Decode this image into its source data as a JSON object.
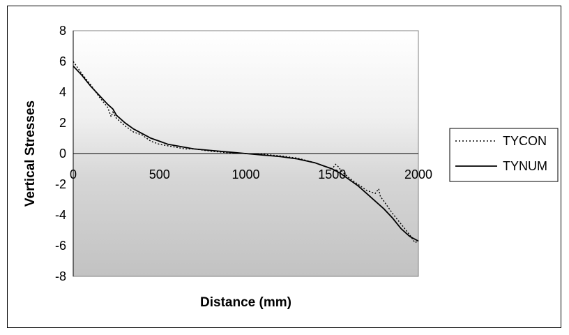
{
  "chart_data": {
    "type": "line",
    "title": "",
    "xlabel": "Distance (mm)",
    "ylabel": "Vertical Stresses",
    "xlim": [
      0,
      2000
    ],
    "ylim": [
      -8,
      8
    ],
    "xticks": [
      0,
      500,
      1000,
      1500,
      2000
    ],
    "yticks": [
      8,
      6,
      4,
      2,
      0,
      -2,
      -4,
      -6,
      -8
    ],
    "grid": false,
    "legend_position": "right",
    "series": [
      {
        "name": "TYCON",
        "style": "dotted",
        "x": [
          0,
          50,
          100,
          150,
          200,
          220,
          230,
          250,
          300,
          350,
          400,
          450,
          500,
          550,
          600,
          650,
          700,
          800,
          900,
          1000,
          1100,
          1200,
          1300,
          1400,
          1450,
          1500,
          1520,
          1540,
          1550,
          1600,
          1650,
          1700,
          1750,
          1770,
          1780,
          1800,
          1850,
          1900,
          1950,
          1980,
          2000
        ],
        "y": [
          6.0,
          5.2,
          4.5,
          3.7,
          3.0,
          2.4,
          2.7,
          2.3,
          1.8,
          1.4,
          1.2,
          0.8,
          0.6,
          0.5,
          0.4,
          0.3,
          0.3,
          0.15,
          0.05,
          0.0,
          -0.05,
          -0.15,
          -0.3,
          -0.6,
          -0.8,
          -1.0,
          -0.7,
          -0.9,
          -1.1,
          -1.6,
          -2.0,
          -2.4,
          -2.6,
          -2.3,
          -2.8,
          -3.1,
          -3.9,
          -4.6,
          -5.3,
          -5.8,
          -5.7
        ]
      },
      {
        "name": "TYNUM",
        "style": "solid",
        "x": [
          0,
          50,
          100,
          150,
          200,
          230,
          250,
          300,
          350,
          400,
          450,
          500,
          550,
          600,
          650,
          700,
          800,
          900,
          1000,
          1100,
          1200,
          1300,
          1400,
          1450,
          1500,
          1550,
          1600,
          1650,
          1700,
          1750,
          1800,
          1850,
          1900,
          1950,
          2000
        ],
        "y": [
          5.7,
          5.1,
          4.4,
          3.8,
          3.2,
          2.9,
          2.5,
          2.0,
          1.6,
          1.3,
          1.0,
          0.8,
          0.6,
          0.5,
          0.4,
          0.3,
          0.2,
          0.1,
          0.0,
          -0.1,
          -0.2,
          -0.35,
          -0.6,
          -0.8,
          -1.0,
          -1.3,
          -1.7,
          -2.1,
          -2.6,
          -3.1,
          -3.6,
          -4.2,
          -4.9,
          -5.4,
          -5.7
        ]
      }
    ]
  }
}
